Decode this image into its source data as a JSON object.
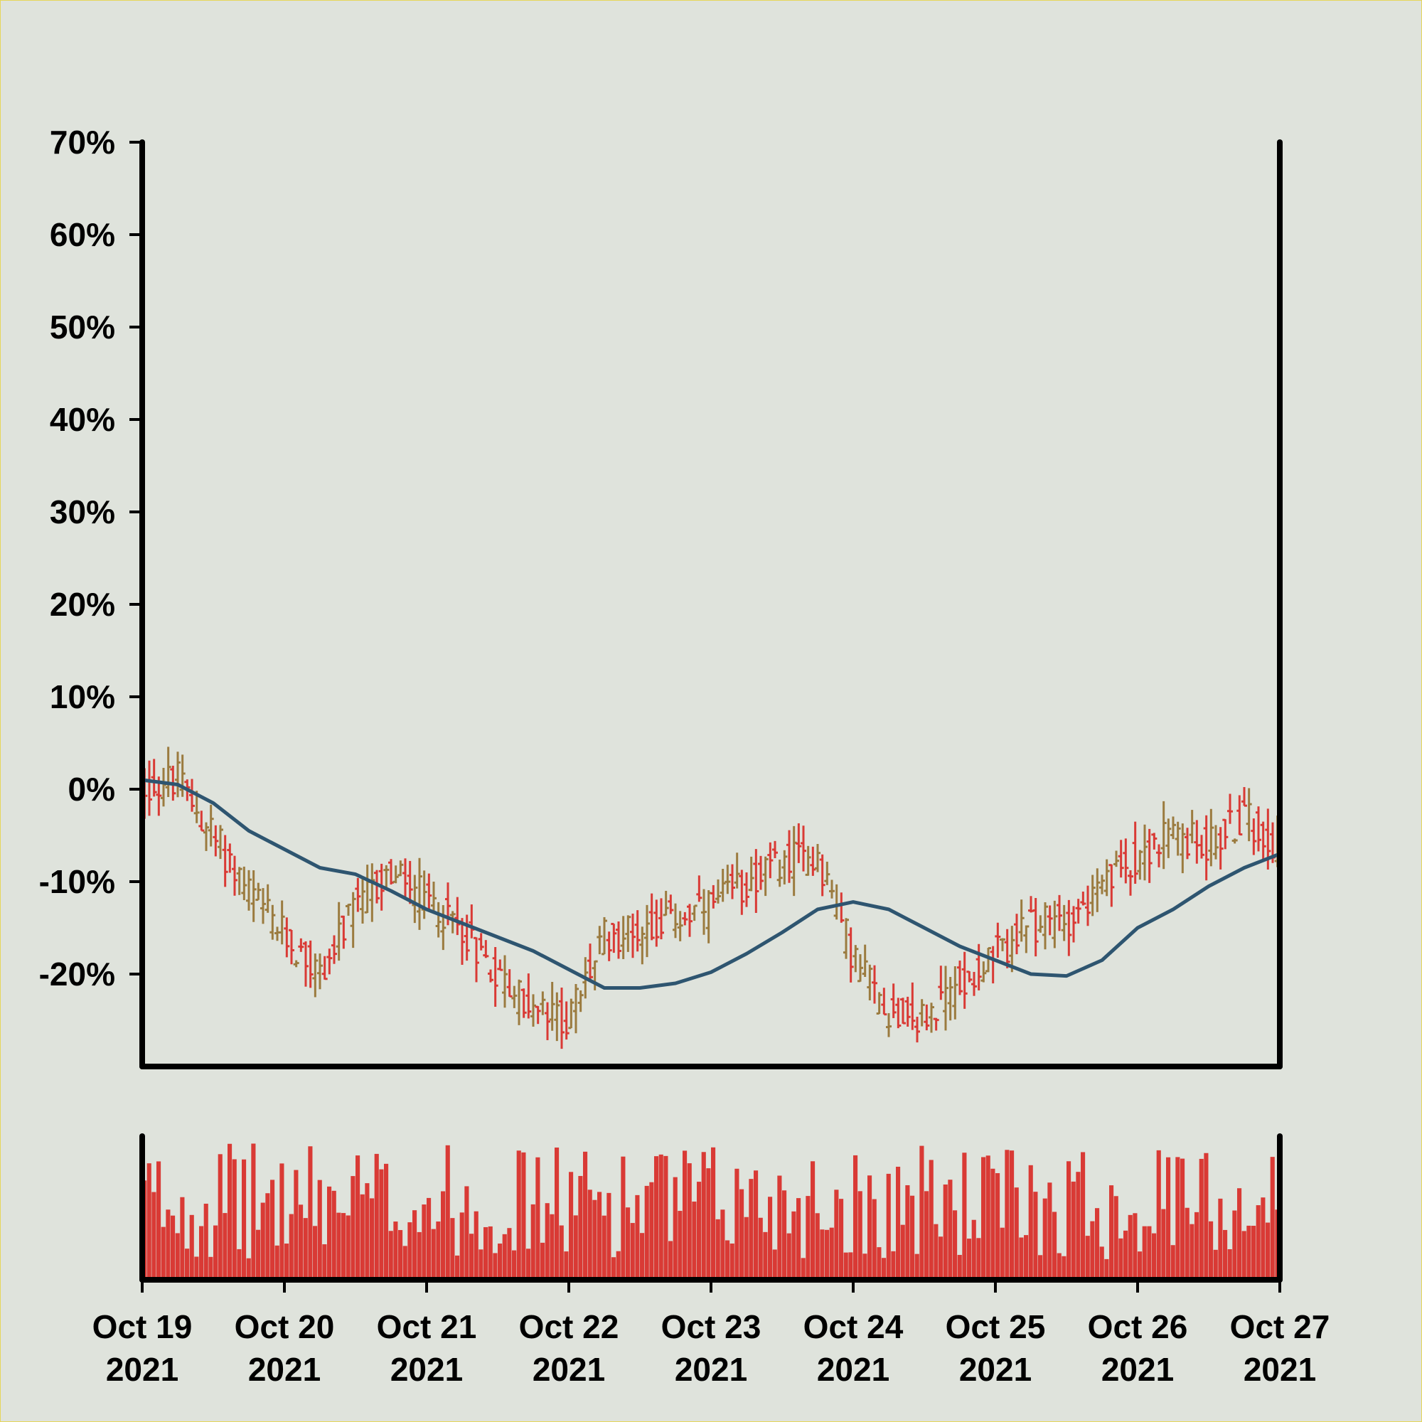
{
  "chart_data": {
    "type": "ohlc",
    "title": "",
    "xlabel": "",
    "ylabel": "",
    "x_ticks": [
      {
        "date": "2021-10-19",
        "line1": "Oct 19",
        "line2": "2021"
      },
      {
        "date": "2021-10-20",
        "line1": "Oct 20",
        "line2": "2021"
      },
      {
        "date": "2021-10-21",
        "line1": "Oct 21",
        "line2": "2021"
      },
      {
        "date": "2021-10-22",
        "line1": "Oct 22",
        "line2": "2021"
      },
      {
        "date": "2021-10-23",
        "line1": "Oct 23",
        "line2": "2021"
      },
      {
        "date": "2021-10-24",
        "line1": "Oct 24",
        "line2": "2021"
      },
      {
        "date": "2021-10-25",
        "line1": "Oct 25",
        "line2": "2021"
      },
      {
        "date": "2021-10-26",
        "line1": "Oct 26",
        "line2": "2021"
      },
      {
        "date": "2021-10-27",
        "line1": "Oct 27",
        "line2": "2021"
      }
    ],
    "y_ticks": [
      {
        "value": -20,
        "label": "-20%"
      },
      {
        "value": -10,
        "label": "-10%"
      },
      {
        "value": 0,
        "label": "0%"
      },
      {
        "value": 10,
        "label": "10%"
      },
      {
        "value": 20,
        "label": "20%"
      },
      {
        "value": 30,
        "label": "30%"
      },
      {
        "value": 40,
        "label": "40%"
      },
      {
        "value": 50,
        "label": "50%"
      },
      {
        "value": 60,
        "label": "60%"
      },
      {
        "value": 70,
        "label": "70%"
      }
    ],
    "xlim": [
      "2021-10-19",
      "2021-10-27"
    ],
    "ylim": [
      -30,
      70
    ],
    "grid": false,
    "colors": {
      "up": "#9b7b3f",
      "down": "#d93a35",
      "moving_average": "#2e5570",
      "volume": "#d93a35",
      "axes": "#000000",
      "background": "#dfe3dc"
    },
    "price_path": [
      {
        "t": "2021-10-19T00:00",
        "v": 0
      },
      {
        "t": "2021-10-19T06:00",
        "v": 1
      },
      {
        "t": "2021-10-19T12:00",
        "v": -5
      },
      {
        "t": "2021-10-19T18:00",
        "v": -11
      },
      {
        "t": "2021-10-20T00:00",
        "v": -16
      },
      {
        "t": "2021-10-20T06:00",
        "v": -20
      },
      {
        "t": "2021-10-20T12:00",
        "v": -13
      },
      {
        "t": "2021-10-20T18:00",
        "v": -9
      },
      {
        "t": "2021-10-21T00:00",
        "v": -12
      },
      {
        "t": "2021-10-21T06:00",
        "v": -15
      },
      {
        "t": "2021-10-21T12:00",
        "v": -20
      },
      {
        "t": "2021-10-21T18:00",
        "v": -24
      },
      {
        "t": "2021-10-22T00:00",
        "v": -25
      },
      {
        "t": "2021-10-22T06:00",
        "v": -16
      },
      {
        "t": "2021-10-22T12:00",
        "v": -15
      },
      {
        "t": "2021-10-22T18:00",
        "v": -14
      },
      {
        "t": "2021-10-23T00:00",
        "v": -13
      },
      {
        "t": "2021-10-23T06:00",
        "v": -10
      },
      {
        "t": "2021-10-23T12:00",
        "v": -8
      },
      {
        "t": "2021-10-23T18:00",
        "v": -7
      },
      {
        "t": "2021-10-24T00:00",
        "v": -18
      },
      {
        "t": "2021-10-24T06:00",
        "v": -24
      },
      {
        "t": "2021-10-24T12:00",
        "v": -25
      },
      {
        "t": "2021-10-24T18:00",
        "v": -21
      },
      {
        "t": "2021-10-25T00:00",
        "v": -18
      },
      {
        "t": "2021-10-25T06:00",
        "v": -15
      },
      {
        "t": "2021-10-25T12:00",
        "v": -14
      },
      {
        "t": "2021-10-25T18:00",
        "v": -11
      },
      {
        "t": "2021-10-26T00:00",
        "v": -7
      },
      {
        "t": "2021-10-26T06:00",
        "v": -5
      },
      {
        "t": "2021-10-26T12:00",
        "v": -6
      },
      {
        "t": "2021-10-26T18:00",
        "v": -3
      },
      {
        "t": "2021-10-27T00:00",
        "v": -6
      }
    ],
    "moving_average": [
      {
        "t": "2021-10-19T00:00",
        "v": 1
      },
      {
        "t": "2021-10-19T06:00",
        "v": 0.5
      },
      {
        "t": "2021-10-19T12:00",
        "v": -1.5
      },
      {
        "t": "2021-10-19T18:00",
        "v": -4.5
      },
      {
        "t": "2021-10-20T00:00",
        "v": -6.5
      },
      {
        "t": "2021-10-20T06:00",
        "v": -8.5
      },
      {
        "t": "2021-10-20T12:00",
        "v": -9.2
      },
      {
        "t": "2021-10-20T18:00",
        "v": -11
      },
      {
        "t": "2021-10-21T00:00",
        "v": -13
      },
      {
        "t": "2021-10-21T06:00",
        "v": -14.5
      },
      {
        "t": "2021-10-21T12:00",
        "v": -16
      },
      {
        "t": "2021-10-21T18:00",
        "v": -17.5
      },
      {
        "t": "2021-10-22T00:00",
        "v": -19.5
      },
      {
        "t": "2021-10-22T06:00",
        "v": -21.5
      },
      {
        "t": "2021-10-22T12:00",
        "v": -21.5
      },
      {
        "t": "2021-10-22T18:00",
        "v": -21
      },
      {
        "t": "2021-10-23T00:00",
        "v": -19.8
      },
      {
        "t": "2021-10-23T06:00",
        "v": -17.8
      },
      {
        "t": "2021-10-23T12:00",
        "v": -15.5
      },
      {
        "t": "2021-10-23T18:00",
        "v": -13
      },
      {
        "t": "2021-10-24T00:00",
        "v": -12.2
      },
      {
        "t": "2021-10-24T06:00",
        "v": -13
      },
      {
        "t": "2021-10-24T12:00",
        "v": -15
      },
      {
        "t": "2021-10-24T18:00",
        "v": -17
      },
      {
        "t": "2021-10-25T00:00",
        "v": -18.5
      },
      {
        "t": "2021-10-25T06:00",
        "v": -20
      },
      {
        "t": "2021-10-25T12:00",
        "v": -20.2
      },
      {
        "t": "2021-10-25T18:00",
        "v": -18.5
      },
      {
        "t": "2021-10-26T00:00",
        "v": -15
      },
      {
        "t": "2021-10-26T06:00",
        "v": -13
      },
      {
        "t": "2021-10-26T12:00",
        "v": -10.5
      },
      {
        "t": "2021-10-26T18:00",
        "v": -8.5
      },
      {
        "t": "2021-10-27T00:00",
        "v": -7
      }
    ],
    "bars_per_day": 30,
    "volume_max": 100
  }
}
